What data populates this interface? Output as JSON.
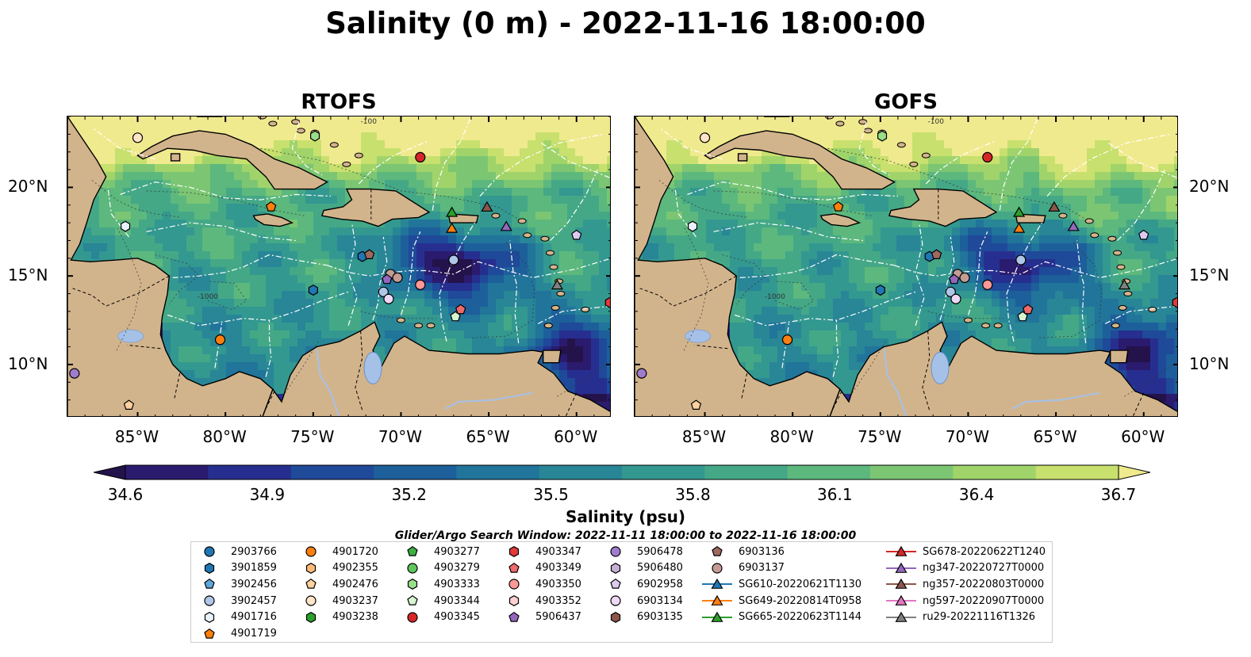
{
  "title": "Salinity (0 m) - 2022-11-16 18:00:00",
  "panels": [
    {
      "title": "RTOFS"
    },
    {
      "title": "GOFS"
    }
  ],
  "axes": {
    "lon_labels": [
      "85°W",
      "80°W",
      "75°W",
      "70°W",
      "65°W",
      "60°W"
    ],
    "lat_labels": [
      "20°N",
      "15°N",
      "10°N"
    ],
    "lon_range": [
      -89,
      -58
    ],
    "lat_range": [
      7,
      24
    ]
  },
  "colorbar": {
    "label": "Salinity (psu)",
    "ticks": [
      "34.6",
      "34.9",
      "35.2",
      "35.5",
      "35.8",
      "36.1",
      "36.4",
      "36.7"
    ],
    "range": [
      34.6,
      36.7
    ],
    "colors": [
      "#24124a",
      "#2a1b6e",
      "#262f8f",
      "#1f4999",
      "#1d5f9a",
      "#21749a",
      "#288697",
      "#339890",
      "#44a887",
      "#5cb87d",
      "#7cc673",
      "#a0d46b",
      "#c8e06d",
      "#f0ea8f"
    ]
  },
  "colors": {
    "land": "#d2b48c",
    "river": "#a6c1e8",
    "eez_line": "#ffffff"
  },
  "search_window": "Glider/Argo Search Window: 2022-11-11 18:00:00 to 2022-11-16 18:00:00",
  "legend": [
    {
      "label": "2903766",
      "marker": "circle",
      "color": "#1f77b4"
    },
    {
      "label": "3901859",
      "marker": "hexagon",
      "color": "#1f77b4"
    },
    {
      "label": "3902456",
      "marker": "pentagon",
      "color": "#5fa6d9"
    },
    {
      "label": "3902457",
      "marker": "circle",
      "color": "#aec7e8"
    },
    {
      "label": "4901716",
      "marker": "hexagon",
      "color": "#e8f2fb"
    },
    {
      "label": "4901719",
      "marker": "pentagon",
      "color": "#ff7f0e"
    },
    {
      "label": "4901720",
      "marker": "circle",
      "color": "#ff7f0e"
    },
    {
      "label": "4902355",
      "marker": "hexagon",
      "color": "#ffbb78"
    },
    {
      "label": "4902476",
      "marker": "pentagon",
      "color": "#ffd0a0"
    },
    {
      "label": "4903237",
      "marker": "circle",
      "color": "#ffe4c8"
    },
    {
      "label": "4903238",
      "marker": "hexagon",
      "color": "#2ca02c"
    },
    {
      "label": "4903277",
      "marker": "pentagon",
      "color": "#3cb043"
    },
    {
      "label": "4903279",
      "marker": "circle",
      "color": "#5ec45e"
    },
    {
      "label": "4903333",
      "marker": "hexagon",
      "color": "#98df8a"
    },
    {
      "label": "4903344",
      "marker": "pentagon",
      "color": "#d8f5d0"
    },
    {
      "label": "4903345",
      "marker": "circle",
      "color": "#d62728"
    },
    {
      "label": "4903347",
      "marker": "hexagon",
      "color": "#e03a3a"
    },
    {
      "label": "4903349",
      "marker": "pentagon",
      "color": "#ee6a6a"
    },
    {
      "label": "4903350",
      "marker": "circle",
      "color": "#ff9896"
    },
    {
      "label": "4903352",
      "marker": "hexagon",
      "color": "#ffd0cf"
    },
    {
      "label": "5906437",
      "marker": "pentagon",
      "color": "#9467bd"
    },
    {
      "label": "5906478",
      "marker": "circle",
      "color": "#a07ccc"
    },
    {
      "label": "5906480",
      "marker": "hexagon",
      "color": "#c5b0d5"
    },
    {
      "label": "6902958",
      "marker": "pentagon",
      "color": "#dccaf0"
    },
    {
      "label": "6903134",
      "marker": "circle",
      "color": "#edd8f5"
    },
    {
      "label": "6903135",
      "marker": "hexagon",
      "color": "#8c564b"
    },
    {
      "label": "6903136",
      "marker": "pentagon",
      "color": "#a0695e"
    },
    {
      "label": "6903137",
      "marker": "circle",
      "color": "#c49c94"
    },
    {
      "label": "SG610-20220621T1130",
      "marker": "triangle",
      "color": "#1f77b4"
    },
    {
      "label": "SG649-20220814T0958",
      "marker": "triangle",
      "color": "#ff7f0e"
    },
    {
      "label": "SG665-20220623T1144",
      "marker": "triangle",
      "color": "#2ca02c"
    },
    {
      "label": "SG678-20220622T1240",
      "marker": "triangle",
      "color": "#d62728"
    },
    {
      "label": "ng347-20220727T0000",
      "marker": "triangle",
      "color": "#9467bd"
    },
    {
      "label": "ng357-20220803T0000",
      "marker": "triangle",
      "color": "#8c564b"
    },
    {
      "label": "ng597-20220907T0000",
      "marker": "triangle",
      "color": "#e377c2"
    },
    {
      "label": "ru29-20221116T1326",
      "marker": "triangle",
      "color": "#7f7f7f"
    }
  ],
  "observations": [
    {
      "id": "4903237",
      "lon": -85.0,
      "lat": 22.8
    },
    {
      "id": "4903333",
      "lon": -74.9,
      "lat": 22.9
    },
    {
      "id": "4903345",
      "lon": -68.9,
      "lat": 21.7
    },
    {
      "id": "4901716",
      "lon": -85.7,
      "lat": 17.8
    },
    {
      "id": "4901719",
      "lon": -77.4,
      "lat": 18.9
    },
    {
      "id": "SG665-20220623T1144",
      "lon": -67.1,
      "lat": 18.6
    },
    {
      "id": "SG649-20220814T0958",
      "lon": -67.1,
      "lat": 17.7
    },
    {
      "id": "ng357-20220803T0000",
      "lon": -65.1,
      "lat": 18.9
    },
    {
      "id": "ng347-20220727T0000",
      "lon": -64.0,
      "lat": 17.8
    },
    {
      "id": "6902958",
      "lon": -60.0,
      "lat": 17.3
    },
    {
      "id": "3901859",
      "lon": -72.2,
      "lat": 16.1
    },
    {
      "id": "6903136",
      "lon": -71.8,
      "lat": 16.2
    },
    {
      "id": "3902457",
      "lon": -67.0,
      "lat": 15.9
    },
    {
      "id": "6903137",
      "lon": -70.6,
      "lat": 15.1
    },
    {
      "id": "6903137",
      "lon": -70.2,
      "lat": 14.9
    },
    {
      "id": "5906437",
      "lon": -70.8,
      "lat": 14.8
    },
    {
      "id": "4903350",
      "lon": -68.9,
      "lat": 14.5
    },
    {
      "id": "3902457",
      "lon": -71.0,
      "lat": 14.1
    },
    {
      "id": "6903134",
      "lon": -70.7,
      "lat": 13.7
    },
    {
      "id": "3901859",
      "lon": -75.0,
      "lat": 14.2
    },
    {
      "id": "ru29-20221116T1326",
      "lon": -61.1,
      "lat": 14.5
    },
    {
      "id": "4903349",
      "lon": -66.6,
      "lat": 13.1
    },
    {
      "id": "4903344",
      "lon": -66.9,
      "lat": 12.7
    },
    {
      "id": "4903347",
      "lon": -58.1,
      "lat": 13.5
    },
    {
      "id": "4901720",
      "lon": -80.3,
      "lat": 11.4
    },
    {
      "id": "5906478",
      "lon": -88.6,
      "lat": 9.5
    },
    {
      "id": "4902476",
      "lon": -85.5,
      "lat": 7.7
    }
  ],
  "contours": [
    {
      "label": "-100"
    },
    {
      "label": "-1000"
    }
  ]
}
